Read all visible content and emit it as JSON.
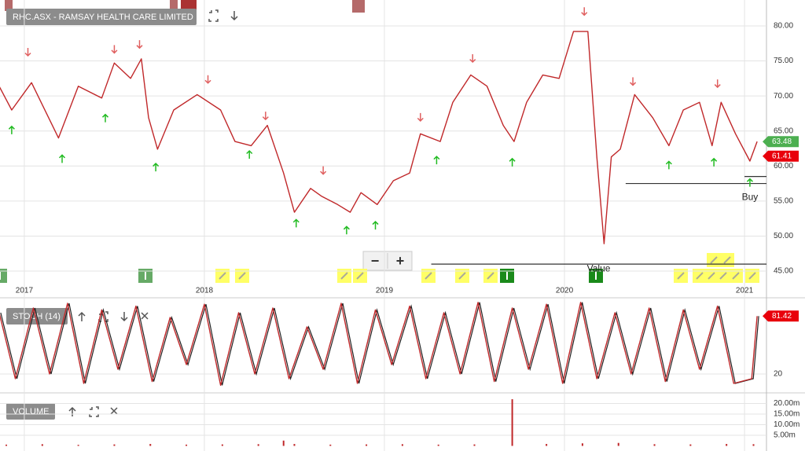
{
  "zoom_controls": [
    "−",
    "+"
  ],
  "chart_data": [
    {
      "type": "line",
      "title": "RHC.ASX - RAMSAY HEALTH CARE LIMITED",
      "x": [
        2016.86,
        2016.93,
        2017.04,
        2017.19,
        2017.3,
        2017.43,
        2017.5,
        2017.59,
        2017.65,
        2017.69,
        2017.74,
        2017.83,
        2017.96,
        2018.09,
        2018.17,
        2018.26,
        2018.35,
        2018.44,
        2018.5,
        2018.59,
        2018.65,
        2018.74,
        2018.81,
        2018.87,
        2018.96,
        2019.05,
        2019.14,
        2019.2,
        2019.31,
        2019.38,
        2019.48,
        2019.57,
        2019.66,
        2019.72,
        2019.79,
        2019.88,
        2019.97,
        2020.05,
        2020.13,
        2020.18,
        2020.22,
        2020.26,
        2020.31,
        2020.39,
        2020.49,
        2020.58,
        2020.66,
        2020.75,
        2020.82,
        2020.87,
        2020.95,
        2021.03,
        2021.07
      ],
      "values": [
        71.4,
        68,
        71.9,
        64,
        71.4,
        69.7,
        74.7,
        72.5,
        75.3,
        66.9,
        62.4,
        68,
        70.2,
        68,
        63.5,
        62.9,
        65.8,
        59,
        53.4,
        56.8,
        55.7,
        54.5,
        53.4,
        56.2,
        54.5,
        57.9,
        59,
        64.6,
        63.5,
        69.1,
        73,
        71.4,
        65.8,
        63.5,
        69.1,
        73,
        72.5,
        79.2,
        79.2,
        61.3,
        48.9,
        61.3,
        62.4,
        70.2,
        66.9,
        62.9,
        68,
        69.1,
        62.9,
        69.1,
        64.6,
        60.7,
        63.5
      ],
      "color": "#c0282a",
      "xlim": [
        2016.865,
        2021.122
      ],
      "ylim": [
        41.3,
        83.7
      ],
      "xticks": [
        2017,
        2018,
        2019,
        2020,
        2021
      ],
      "yticks": [
        {
          "value": 45,
          "label": "45.00"
        },
        {
          "value": 50,
          "label": "50.00"
        },
        {
          "value": 55,
          "label": "55.00"
        },
        {
          "value": 60,
          "label": "60.00"
        },
        {
          "value": 65,
          "label": "65.00"
        },
        {
          "value": 70,
          "label": "70.00"
        },
        {
          "value": 75,
          "label": "75.00"
        },
        {
          "value": 80,
          "label": "80.00"
        }
      ],
      "grid": true,
      "price_tags": [
        {
          "value": 63.48,
          "color": "#4caf50"
        },
        {
          "value": 61.41,
          "color": "#e8000b"
        }
      ],
      "horizontal_lines": [
        {
          "y": 57.5,
          "x_start": 2020.34
        },
        {
          "y": 58.5,
          "x_start": 2021.0
        },
        {
          "y": 46,
          "x_start": 2019.26
        }
      ],
      "annotations": [
        {
          "text": "Buy",
          "x": 2021.03,
          "y": 55.5
        },
        {
          "text": "Value",
          "x": 2020.19,
          "y": 45.3
        }
      ],
      "signals": [
        {
          "x": 2017.02,
          "y": 76.3,
          "dir": "down"
        },
        {
          "x": 2017.5,
          "y": 76.7,
          "dir": "down"
        },
        {
          "x": 2017.64,
          "y": 77.4,
          "dir": "down"
        },
        {
          "x": 2018.02,
          "y": 72.4,
          "dir": "down"
        },
        {
          "x": 2018.34,
          "y": 67.2,
          "dir": "down"
        },
        {
          "x": 2018.66,
          "y": 59.4,
          "dir": "down"
        },
        {
          "x": 2019.2,
          "y": 67,
          "dir": "down"
        },
        {
          "x": 2019.49,
          "y": 75.4,
          "dir": "down"
        },
        {
          "x": 2020.11,
          "y": 82.1,
          "dir": "down"
        },
        {
          "x": 2020.38,
          "y": 72.1,
          "dir": "down"
        },
        {
          "x": 2020.85,
          "y": 71.8,
          "dir": "down"
        },
        {
          "x": 2016.93,
          "y": 65.1,
          "dir": "up"
        },
        {
          "x": 2017.21,
          "y": 61,
          "dir": "up"
        },
        {
          "x": 2017.45,
          "y": 66.8,
          "dir": "up"
        },
        {
          "x": 2017.73,
          "y": 59.8,
          "dir": "up"
        },
        {
          "x": 2018.25,
          "y": 61.6,
          "dir": "up"
        },
        {
          "x": 2018.51,
          "y": 51.8,
          "dir": "up"
        },
        {
          "x": 2018.79,
          "y": 50.8,
          "dir": "up"
        },
        {
          "x": 2018.95,
          "y": 51.5,
          "dir": "up"
        },
        {
          "x": 2019.29,
          "y": 60.8,
          "dir": "up"
        },
        {
          "x": 2019.71,
          "y": 60.5,
          "dir": "up"
        },
        {
          "x": 2020.58,
          "y": 60.1,
          "dir": "up"
        },
        {
          "x": 2020.83,
          "y": 60.5,
          "dir": "up"
        },
        {
          "x": 2021.03,
          "y": 57.6,
          "dir": "up"
        }
      ]
    },
    {
      "type": "line",
      "title": "STOCH (14)",
      "x": [
        2016.86,
        2016.95,
        2017.05,
        2017.14,
        2017.24,
        2017.33,
        2017.43,
        2017.52,
        2017.62,
        2017.71,
        2017.81,
        2017.9,
        2018.0,
        2018.09,
        2018.19,
        2018.28,
        2018.38,
        2018.47,
        2018.57,
        2018.66,
        2018.76,
        2018.85,
        2018.95,
        2019.04,
        2019.14,
        2019.23,
        2019.33,
        2019.42,
        2019.52,
        2019.61,
        2019.71,
        2019.8,
        2019.9,
        2019.99,
        2020.09,
        2020.18,
        2020.28,
        2020.37,
        2020.47,
        2020.56,
        2020.66,
        2020.75,
        2020.85,
        2020.94,
        2021.04,
        2021.07
      ],
      "values": [
        85,
        15,
        90,
        20,
        95,
        10,
        88,
        25,
        92,
        12,
        80,
        30,
        94,
        8,
        85,
        20,
        90,
        15,
        70,
        25,
        95,
        10,
        88,
        30,
        92,
        15,
        85,
        20,
        96,
        12,
        90,
        25,
        94,
        10,
        96,
        15,
        85,
        20,
        90,
        12,
        88,
        25,
        92,
        10,
        15,
        81.42
      ],
      "color": "#c0282a",
      "xlim": [
        2016.865,
        2021.122
      ],
      "ylim": [
        0,
        100
      ],
      "yticks": [
        20
      ],
      "price_tags": [
        {
          "value": 81.42,
          "color": "#e8000b"
        }
      ]
    },
    {
      "type": "bar",
      "title": "VOLUME",
      "x": [
        2016.9,
        2017.1,
        2017.3,
        2017.5,
        2017.7,
        2017.9,
        2018.1,
        2018.3,
        2018.44,
        2018.5,
        2018.7,
        2018.9,
        2019.1,
        2019.3,
        2019.5,
        2019.71,
        2019.9,
        2020.1,
        2020.3,
        2020.5,
        2020.7,
        2020.9,
        2021.05
      ],
      "values": [
        0.6,
        0.8,
        0.5,
        0.7,
        0.9,
        0.6,
        0.7,
        0.8,
        2.5,
        0.9,
        0.6,
        0.7,
        0.8,
        0.6,
        0.7,
        22,
        0.9,
        1.2,
        1.4,
        0.8,
        0.7,
        0.9,
        0.8
      ],
      "color": "#c0282a",
      "xlim": [
        2016.865,
        2021.122
      ],
      "ylim": [
        0,
        25
      ],
      "yticks": [
        {
          "value": 5,
          "label": "5.00m"
        },
        {
          "value": 10,
          "label": "10.00m"
        },
        {
          "value": 15,
          "label": "15.00m"
        },
        {
          "value": 20,
          "label": "20.00m"
        }
      ]
    }
  ]
}
